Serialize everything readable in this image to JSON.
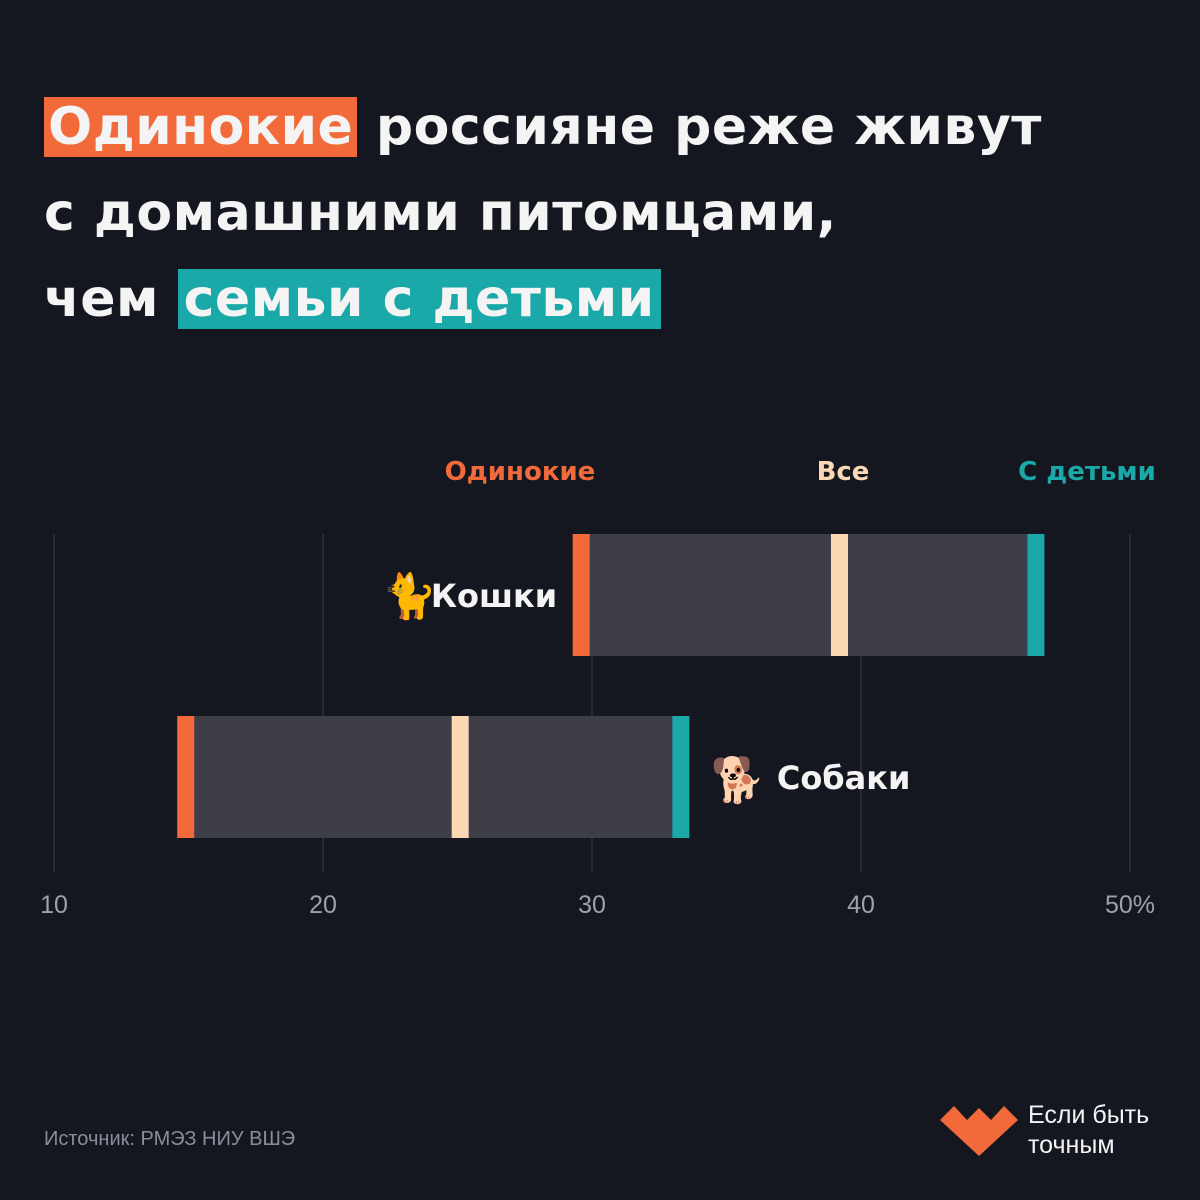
{
  "title": {
    "line1_highlight": "Одинокие",
    "line1_rest": " россияне реже живут",
    "line2": "с домашними питомцами,",
    "line3_prefix": "чем ",
    "line3_highlight": "семьи с детьми"
  },
  "colors": {
    "background": "#141720",
    "single": "#f26a3a",
    "all": "#fcd7b4",
    "with_children": "#1aa8a8",
    "range_bar": "#3d3e48",
    "gridline": "#3a3d48",
    "tick_label": "#9ea1ab"
  },
  "chart_data": {
    "type": "dumbbell",
    "legend": [
      "Одинокие",
      "Все",
      "С детьми"
    ],
    "categories": [
      {
        "label": "Кошки",
        "icon": "cat-icon",
        "label_side": "left"
      },
      {
        "label": "Собаки",
        "icon": "dog-icon",
        "label_side": "right"
      }
    ],
    "series": [
      {
        "name": "Одинокие",
        "values": [
          29.3,
          14.6
        ]
      },
      {
        "name": "Все",
        "values": [
          39.2,
          25.1
        ]
      },
      {
        "name": "С детьми",
        "values": [
          46.8,
          33.6
        ]
      }
    ],
    "xlim": [
      10,
      50
    ],
    "xticks": [
      10,
      20,
      30,
      40,
      50
    ],
    "xtick_labels": [
      "10",
      "20",
      "30",
      "40",
      "50%"
    ],
    "grid": true
  },
  "source": "Источник: РМЭЗ НИУ ВШЭ",
  "brand": {
    "line1": "Если быть",
    "line2": "точным"
  }
}
